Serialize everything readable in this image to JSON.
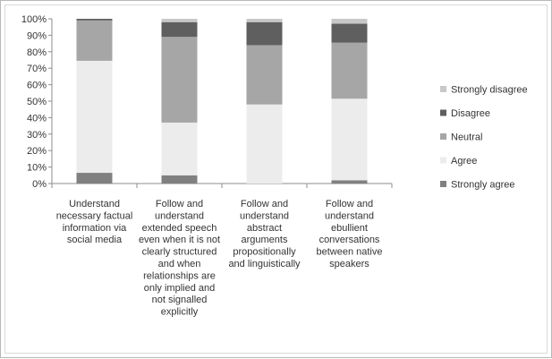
{
  "chart_data": {
    "type": "bar",
    "stacked": true,
    "percent": true,
    "title": "",
    "xlabel": "",
    "ylabel": "",
    "ylim": [
      0,
      100
    ],
    "yticks": [
      "0%",
      "10%",
      "20%",
      "30%",
      "40%",
      "50%",
      "60%",
      "70%",
      "80%",
      "90%",
      "100%"
    ],
    "categories": [
      [
        "Understand",
        "necessary factual",
        "information via",
        "social media"
      ],
      [
        "Follow and",
        "understand",
        "extended speech",
        "even when it is not",
        "clearly structured",
        "and when",
        "relationships are",
        "only implied and",
        "not signalled",
        "explicitly"
      ],
      [
        "Follow and",
        "understand",
        "abstract",
        "arguments",
        "propositionally",
        "and linguistically"
      ],
      [
        "Follow and",
        "understand",
        "ebullient",
        "conversations",
        "between native",
        "speakers"
      ]
    ],
    "series": [
      {
        "name": "Strongly agree",
        "color": "#808080",
        "values": [
          6.5,
          5,
          0,
          2
        ]
      },
      {
        "name": "Agree",
        "color": "#ececec",
        "values": [
          68,
          32,
          48,
          49.5
        ]
      },
      {
        "name": "Neutral",
        "color": "#a6a6a6",
        "values": [
          24.5,
          52,
          36,
          34
        ]
      },
      {
        "name": "Disagree",
        "color": "#5f5f5f",
        "values": [
          1,
          9,
          14,
          11.5
        ]
      },
      {
        "name": "Strongly disagree",
        "color": "#c8c8c8",
        "values": [
          0,
          2,
          2,
          3
        ]
      }
    ],
    "legend_position": "right",
    "grid": false
  }
}
